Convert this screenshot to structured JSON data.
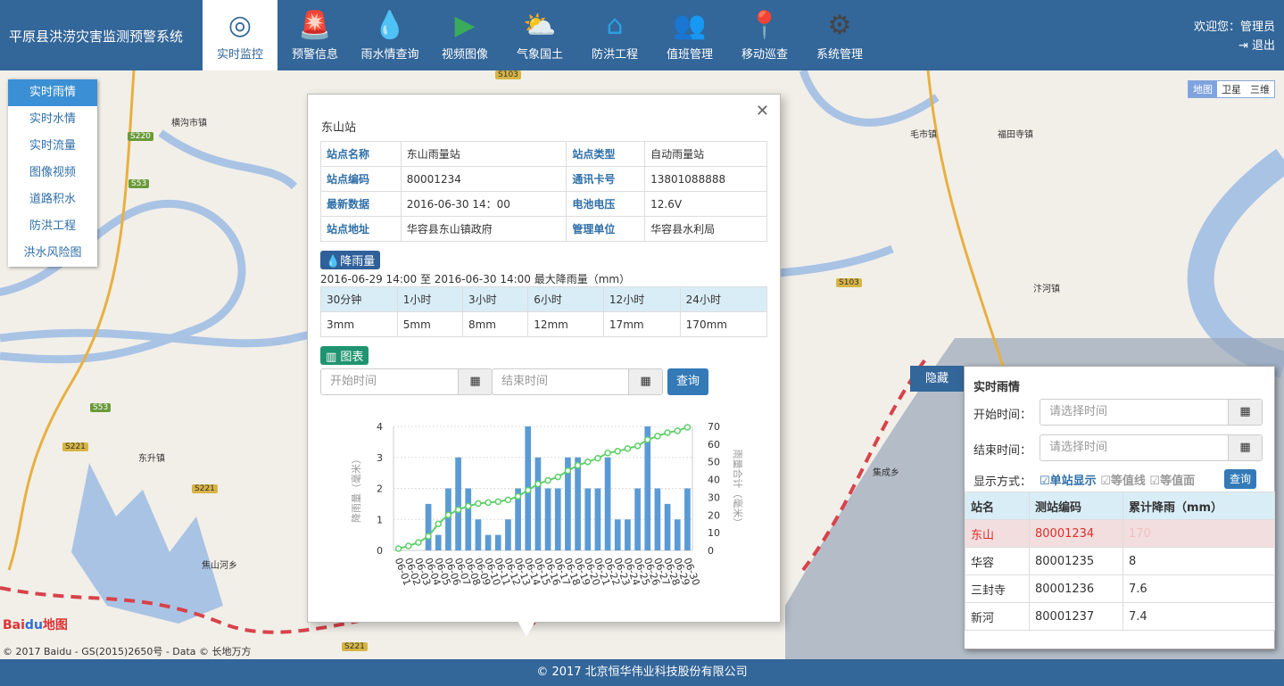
{
  "app": {
    "title": "平原县洪涝灾害监测预警系统",
    "welcome": "欢迎您：管理员",
    "logout": "退出"
  },
  "nav": [
    {
      "label": "实时监控",
      "icon": "target-icon",
      "color": "#336699",
      "active": true
    },
    {
      "label": "预警信息",
      "icon": "alarm-light-icon",
      "color": "#e2231a"
    },
    {
      "label": "雨水情查询",
      "icon": "water-drops-icon",
      "color": "#1e2f8a"
    },
    {
      "label": "视频图像",
      "icon": "video-icon",
      "color": "#3aaa5c"
    },
    {
      "label": "气象国土",
      "icon": "weather-icon",
      "color": "#e8a53a"
    },
    {
      "label": "防洪工程",
      "icon": "flood-house-icon",
      "color": "#2aa0e0"
    },
    {
      "label": "值班管理",
      "icon": "users-icon",
      "color": "#3aaa5c"
    },
    {
      "label": "移动巡查",
      "icon": "map-pin-icon",
      "color": "#e8387d"
    },
    {
      "label": "系统管理",
      "icon": "gear-icon",
      "color": "#444444"
    }
  ],
  "sidebar": [
    "实时雨情",
    "实时水情",
    "实时流量",
    "图像视频",
    "道路积水",
    "防洪工程",
    "洪水风险图"
  ],
  "map": {
    "types": [
      "地图",
      "卫星",
      "三维"
    ],
    "labels": [
      "横沟市镇",
      "毛市镇",
      "福田寺镇",
      "汴河镇",
      "东升镇",
      "焦山河乡",
      "集成乡"
    ],
    "roads": [
      "S220",
      "S53",
      "S103",
      "S103",
      "S53",
      "S221",
      "S221",
      "S221"
    ],
    "copyright": "© 2017 Baidu - GS(2015)2650号 - Data © 长地万方",
    "logo": "Baidu地图"
  },
  "popup": {
    "title": "东山站",
    "info": [
      [
        "站点名称",
        "东山雨量站",
        "站点类型",
        "自动雨量站"
      ],
      [
        "站点编码",
        "80001234",
        "通讯卡号",
        "13801088888"
      ],
      [
        "最新数据",
        "2016-06-30 14：00",
        "电池电压",
        "12.6V"
      ],
      [
        "站点地址",
        "华容县东山镇政府",
        "管理单位",
        "华容县水利局"
      ]
    ],
    "rain_badge": "降雨量",
    "rain_caption": "2016-06-29 14:00 至 2016-06-30 14:00 最大降雨量（mm）",
    "rain_headers": [
      "30分钟",
      "1小时",
      "3小时",
      "6小时",
      "12小时",
      "24小时"
    ],
    "rain_values": [
      "3mm",
      "5mm",
      "8mm",
      "12mm",
      "17mm",
      "170mm"
    ],
    "chart_badge": "图表",
    "start_placeholder": "开始时间",
    "end_placeholder": "结束时间",
    "query": "查询"
  },
  "chart_data": {
    "type": "bar+line",
    "categories": [
      "06-01",
      "06-02",
      "06-03",
      "06-04",
      "06-05",
      "06-06",
      "06-07",
      "06-08",
      "06-09",
      "06-10",
      "06-11",
      "06-12",
      "06-13",
      "06-14",
      "06-15",
      "06-16",
      "06-17",
      "06-18",
      "06-19",
      "06-20",
      "06-21",
      "06-22",
      "06-23",
      "06-24",
      "06-25",
      "06-26",
      "06-27",
      "06-28",
      "06-29",
      "06-30"
    ],
    "series": [
      {
        "type": "bar",
        "axis": "left",
        "color": "#5b9bd5",
        "values": [
          0,
          0,
          0,
          1.5,
          0.5,
          2,
          3,
          2,
          1,
          0.5,
          0.5,
          1,
          2,
          4,
          3,
          2,
          2,
          3,
          3,
          2,
          2,
          3,
          1,
          1,
          2,
          4,
          2,
          1.5,
          1,
          2
        ]
      },
      {
        "type": "line",
        "axis": "right",
        "color": "#5fcf6a",
        "values": [
          1,
          2.5,
          4.5,
          8,
          15,
          20,
          23,
          25,
          26.5,
          27,
          27.5,
          28.5,
          30.5,
          34,
          37.5,
          39.5,
          41.5,
          45,
          48,
          50,
          52,
          55,
          56,
          57.5,
          59,
          62.5,
          64.5,
          66.5,
          67.5,
          69.5
        ]
      }
    ],
    "ylabel": "降雨量（毫米）",
    "y2label": "雨量合计（毫米）",
    "ylim": [
      0,
      4
    ],
    "y2lim": [
      0,
      70
    ],
    "yticks": [
      0,
      1,
      2,
      3,
      4
    ],
    "y2ticks": [
      0,
      10,
      20,
      30,
      40,
      50,
      60,
      70
    ],
    "grid": true
  },
  "panel": {
    "hide": "隐藏",
    "title": "实时雨情",
    "start_label": "开始时间：",
    "end_label": "结束时间：",
    "placeholder": "请选择时间",
    "mode_label": "显示方式：",
    "modes": [
      "单站显示",
      "等值线",
      "等值面"
    ],
    "query": "查询",
    "headers": [
      "站名",
      "测站编码",
      "累计降雨（mm）"
    ],
    "rows": [
      [
        "东山",
        "80001234",
        "170"
      ],
      [
        "华容",
        "80001235",
        "8"
      ],
      [
        "三封寺",
        "80001236",
        "7.6"
      ],
      [
        "新河",
        "80001237",
        "7.4"
      ]
    ]
  },
  "footer": "© 2017 北京恒华伟业科技股份有限公司"
}
